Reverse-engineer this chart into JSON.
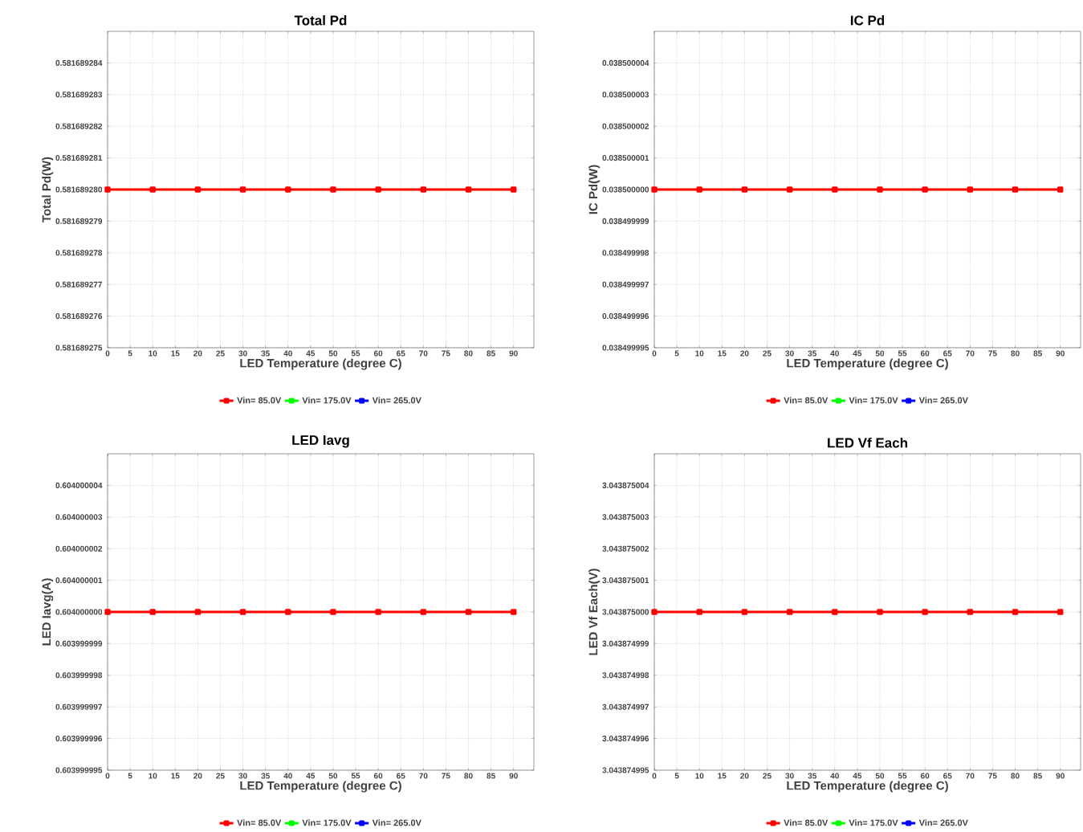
{
  "chart_data": [
    {
      "type": "line",
      "title": "Total Pd",
      "xlabel": "LED Temperature (degree C)",
      "ylabel": "Total Pd(W)",
      "x": [
        0,
        10,
        20,
        30,
        40,
        50,
        60,
        70,
        80,
        90
      ],
      "series": [
        {
          "name": "Vin= 85.0V",
          "color": "#ff0000",
          "values": [
            0.58168928,
            0.58168928,
            0.58168928,
            0.58168928,
            0.58168928,
            0.58168928,
            0.58168928,
            0.58168928,
            0.58168928,
            0.58168928
          ]
        },
        {
          "name": "Vin= 175.0V",
          "color": "#00ff00",
          "values": [
            null,
            null,
            null,
            null,
            null,
            null,
            null,
            null,
            null,
            null
          ]
        },
        {
          "name": "Vin= 265.0V",
          "color": "#0000ff",
          "values": [
            null,
            null,
            null,
            null,
            null,
            null,
            null,
            null,
            null,
            null
          ]
        }
      ],
      "xlim": [
        0,
        94.5
      ],
      "xticks": [
        0,
        5,
        10,
        15,
        20,
        25,
        30,
        35,
        40,
        45,
        50,
        55,
        60,
        65,
        70,
        75,
        80,
        85,
        90
      ],
      "ylim": [
        0.581689275,
        0.581689285
      ],
      "yticks": [
        0.581689275,
        0.581689276,
        0.581689277,
        0.581689278,
        0.581689279,
        {
          "value": 0.58168928,
          "label": "0.581689280"
        },
        0.581689281,
        0.581689282,
        0.581689283,
        0.581689284
      ],
      "grid": true,
      "legend": "bottom",
      "marker": "square",
      "line_style": "solid"
    },
    {
      "type": "line",
      "title": "IC Pd",
      "xlabel": "LED Temperature (degree C)",
      "ylabel": "IC Pd(W)",
      "x": [
        0,
        10,
        20,
        30,
        40,
        50,
        60,
        70,
        80,
        90
      ],
      "series": [
        {
          "name": "Vin= 85.0V",
          "color": "#ff0000",
          "values": [
            0.0385,
            0.0385,
            0.0385,
            0.0385,
            0.0385,
            0.0385,
            0.0385,
            0.0385,
            0.0385,
            0.0385
          ]
        },
        {
          "name": "Vin= 175.0V",
          "color": "#00ff00",
          "values": [
            null,
            null,
            null,
            null,
            null,
            null,
            null,
            null,
            null,
            null
          ]
        },
        {
          "name": "Vin= 265.0V",
          "color": "#0000ff",
          "values": [
            null,
            null,
            null,
            null,
            null,
            null,
            null,
            null,
            null,
            null
          ]
        }
      ],
      "xlim": [
        0,
        94.5
      ],
      "xticks": [
        0,
        5,
        10,
        15,
        20,
        25,
        30,
        35,
        40,
        45,
        50,
        55,
        60,
        65,
        70,
        75,
        80,
        85,
        90
      ],
      "ylim": [
        0.038499995,
        0.038500005
      ],
      "yticks": [
        0.038499995,
        0.038499996,
        0.038499997,
        0.038499998,
        0.038499999,
        {
          "value": 0.0385,
          "label": "0.038500000"
        },
        0.038500001,
        0.038500002,
        0.038500003,
        0.038500004
      ],
      "grid": true,
      "legend": "bottom",
      "marker": "square",
      "line_style": "solid"
    },
    {
      "type": "line",
      "title": "LED Iavg",
      "xlabel": "LED Temperature (degree C)",
      "ylabel": "LED Iavg(A)",
      "x": [
        0,
        10,
        20,
        30,
        40,
        50,
        60,
        70,
        80,
        90
      ],
      "series": [
        {
          "name": "Vin= 85.0V",
          "color": "#ff0000",
          "values": [
            0.604,
            0.604,
            0.604,
            0.604,
            0.604,
            0.604,
            0.604,
            0.604,
            0.604,
            0.604
          ]
        },
        {
          "name": "Vin= 175.0V",
          "color": "#00ff00",
          "values": [
            null,
            null,
            null,
            null,
            null,
            null,
            null,
            null,
            null,
            null
          ]
        },
        {
          "name": "Vin= 265.0V",
          "color": "#0000ff",
          "values": [
            null,
            null,
            null,
            null,
            null,
            null,
            null,
            null,
            null,
            null
          ]
        }
      ],
      "xlim": [
        0,
        94.5
      ],
      "xticks": [
        0,
        5,
        10,
        15,
        20,
        25,
        30,
        35,
        40,
        45,
        50,
        55,
        60,
        65,
        70,
        75,
        80,
        85,
        90
      ],
      "ylim": [
        0.603999995,
        0.604000005
      ],
      "yticks": [
        0.603999995,
        0.603999996,
        0.603999997,
        0.603999998,
        0.603999999,
        {
          "value": 0.604,
          "label": "0.604000000"
        },
        0.604000001,
        0.604000002,
        0.604000003,
        0.604000004
      ],
      "grid": true,
      "legend": "bottom",
      "marker": "square",
      "line_style": "solid"
    },
    {
      "type": "line",
      "title": "LED Vf Each",
      "xlabel": "LED Temperature (degree C)",
      "ylabel": "LED Vf Each(V)",
      "x": [
        0,
        10,
        20,
        30,
        40,
        50,
        60,
        70,
        80,
        90
      ],
      "series": [
        {
          "name": "Vin= 85.0V",
          "color": "#ff0000",
          "values": [
            3.043875,
            3.043875,
            3.043875,
            3.043875,
            3.043875,
            3.043875,
            3.043875,
            3.043875,
            3.043875,
            3.043875
          ]
        },
        {
          "name": "Vin= 175.0V",
          "color": "#00ff00",
          "values": [
            null,
            null,
            null,
            null,
            null,
            null,
            null,
            null,
            null,
            null
          ]
        },
        {
          "name": "Vin= 265.0V",
          "color": "#0000ff",
          "values": [
            null,
            null,
            null,
            null,
            null,
            null,
            null,
            null,
            null,
            null
          ]
        }
      ],
      "xlim": [
        0,
        94.5
      ],
      "xticks": [
        0,
        5,
        10,
        15,
        20,
        25,
        30,
        35,
        40,
        45,
        50,
        55,
        60,
        65,
        70,
        75,
        80,
        85,
        90
      ],
      "ylim": [
        3.043874995,
        3.043875005
      ],
      "yticks": [
        3.043874995,
        3.043874996,
        3.043874997,
        3.043874998,
        3.043874999,
        {
          "value": 3.043875,
          "label": "3.043875000"
        },
        3.043875001,
        3.043875002,
        3.043875003,
        3.043875004
      ],
      "grid": true,
      "legend": "bottom",
      "marker": "square",
      "line_style": "solid"
    }
  ]
}
